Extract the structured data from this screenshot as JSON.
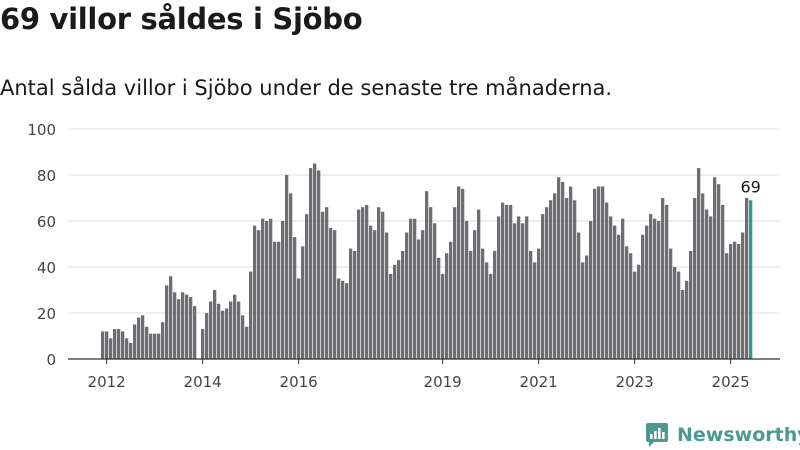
{
  "title": "69 villor såldes i Sjöbo",
  "subtitle": "Antal sålda villor i Sjöbo under de senaste tre månaderna.",
  "brand": {
    "name": "Newsworthy"
  },
  "colors": {
    "bar": "#6e6d72",
    "highlight": "#2a9d8f",
    "grid": "#dddddd",
    "axis": "#333333",
    "brand": "#4a9a91"
  },
  "chart_data": {
    "type": "bar",
    "title": "",
    "xlabel": "",
    "ylabel": "",
    "ylim": [
      0,
      100
    ],
    "yticks": [
      0,
      20,
      40,
      60,
      80,
      100
    ],
    "grid": true,
    "start": "2011-12",
    "xticks": [
      "2012",
      "2014",
      "2016",
      "2019",
      "2021",
      "2023",
      "2025"
    ],
    "values": [
      12,
      12,
      9,
      13,
      13,
      12,
      9,
      7,
      15,
      18,
      19,
      14,
      11,
      11,
      11,
      16,
      32,
      36,
      29,
      26,
      29,
      28,
      27,
      23,
      0,
      13,
      20,
      25,
      30,
      24,
      21,
      22,
      25,
      28,
      25,
      19,
      14,
      38,
      58,
      56,
      61,
      60,
      61,
      51,
      51,
      60,
      80,
      72,
      53,
      35,
      49,
      63,
      83,
      85,
      82,
      64,
      66,
      57,
      56,
      35,
      34,
      33,
      48,
      47,
      65,
      66,
      67,
      58,
      56,
      66,
      64,
      55,
      37,
      41,
      43,
      47,
      55,
      61,
      61,
      52,
      56,
      73,
      66,
      59,
      44,
      37,
      46,
      51,
      66,
      75,
      74,
      60,
      47,
      56,
      65,
      48,
      42,
      37,
      47,
      62,
      68,
      67,
      67,
      59,
      62,
      59,
      62,
      47,
      42,
      48,
      63,
      66,
      69,
      72,
      79,
      77,
      70,
      75,
      69,
      55,
      42,
      45,
      60,
      74,
      75,
      75,
      68,
      62,
      58,
      54,
      61,
      49,
      46,
      38,
      41,
      54,
      58,
      63,
      61,
      60,
      70,
      67,
      48,
      40,
      38,
      30,
      34,
      47,
      70,
      83,
      72,
      65,
      62,
      79,
      76,
      67,
      46,
      50,
      51,
      50,
      55,
      70,
      69
    ],
    "highlight_label": "69"
  }
}
